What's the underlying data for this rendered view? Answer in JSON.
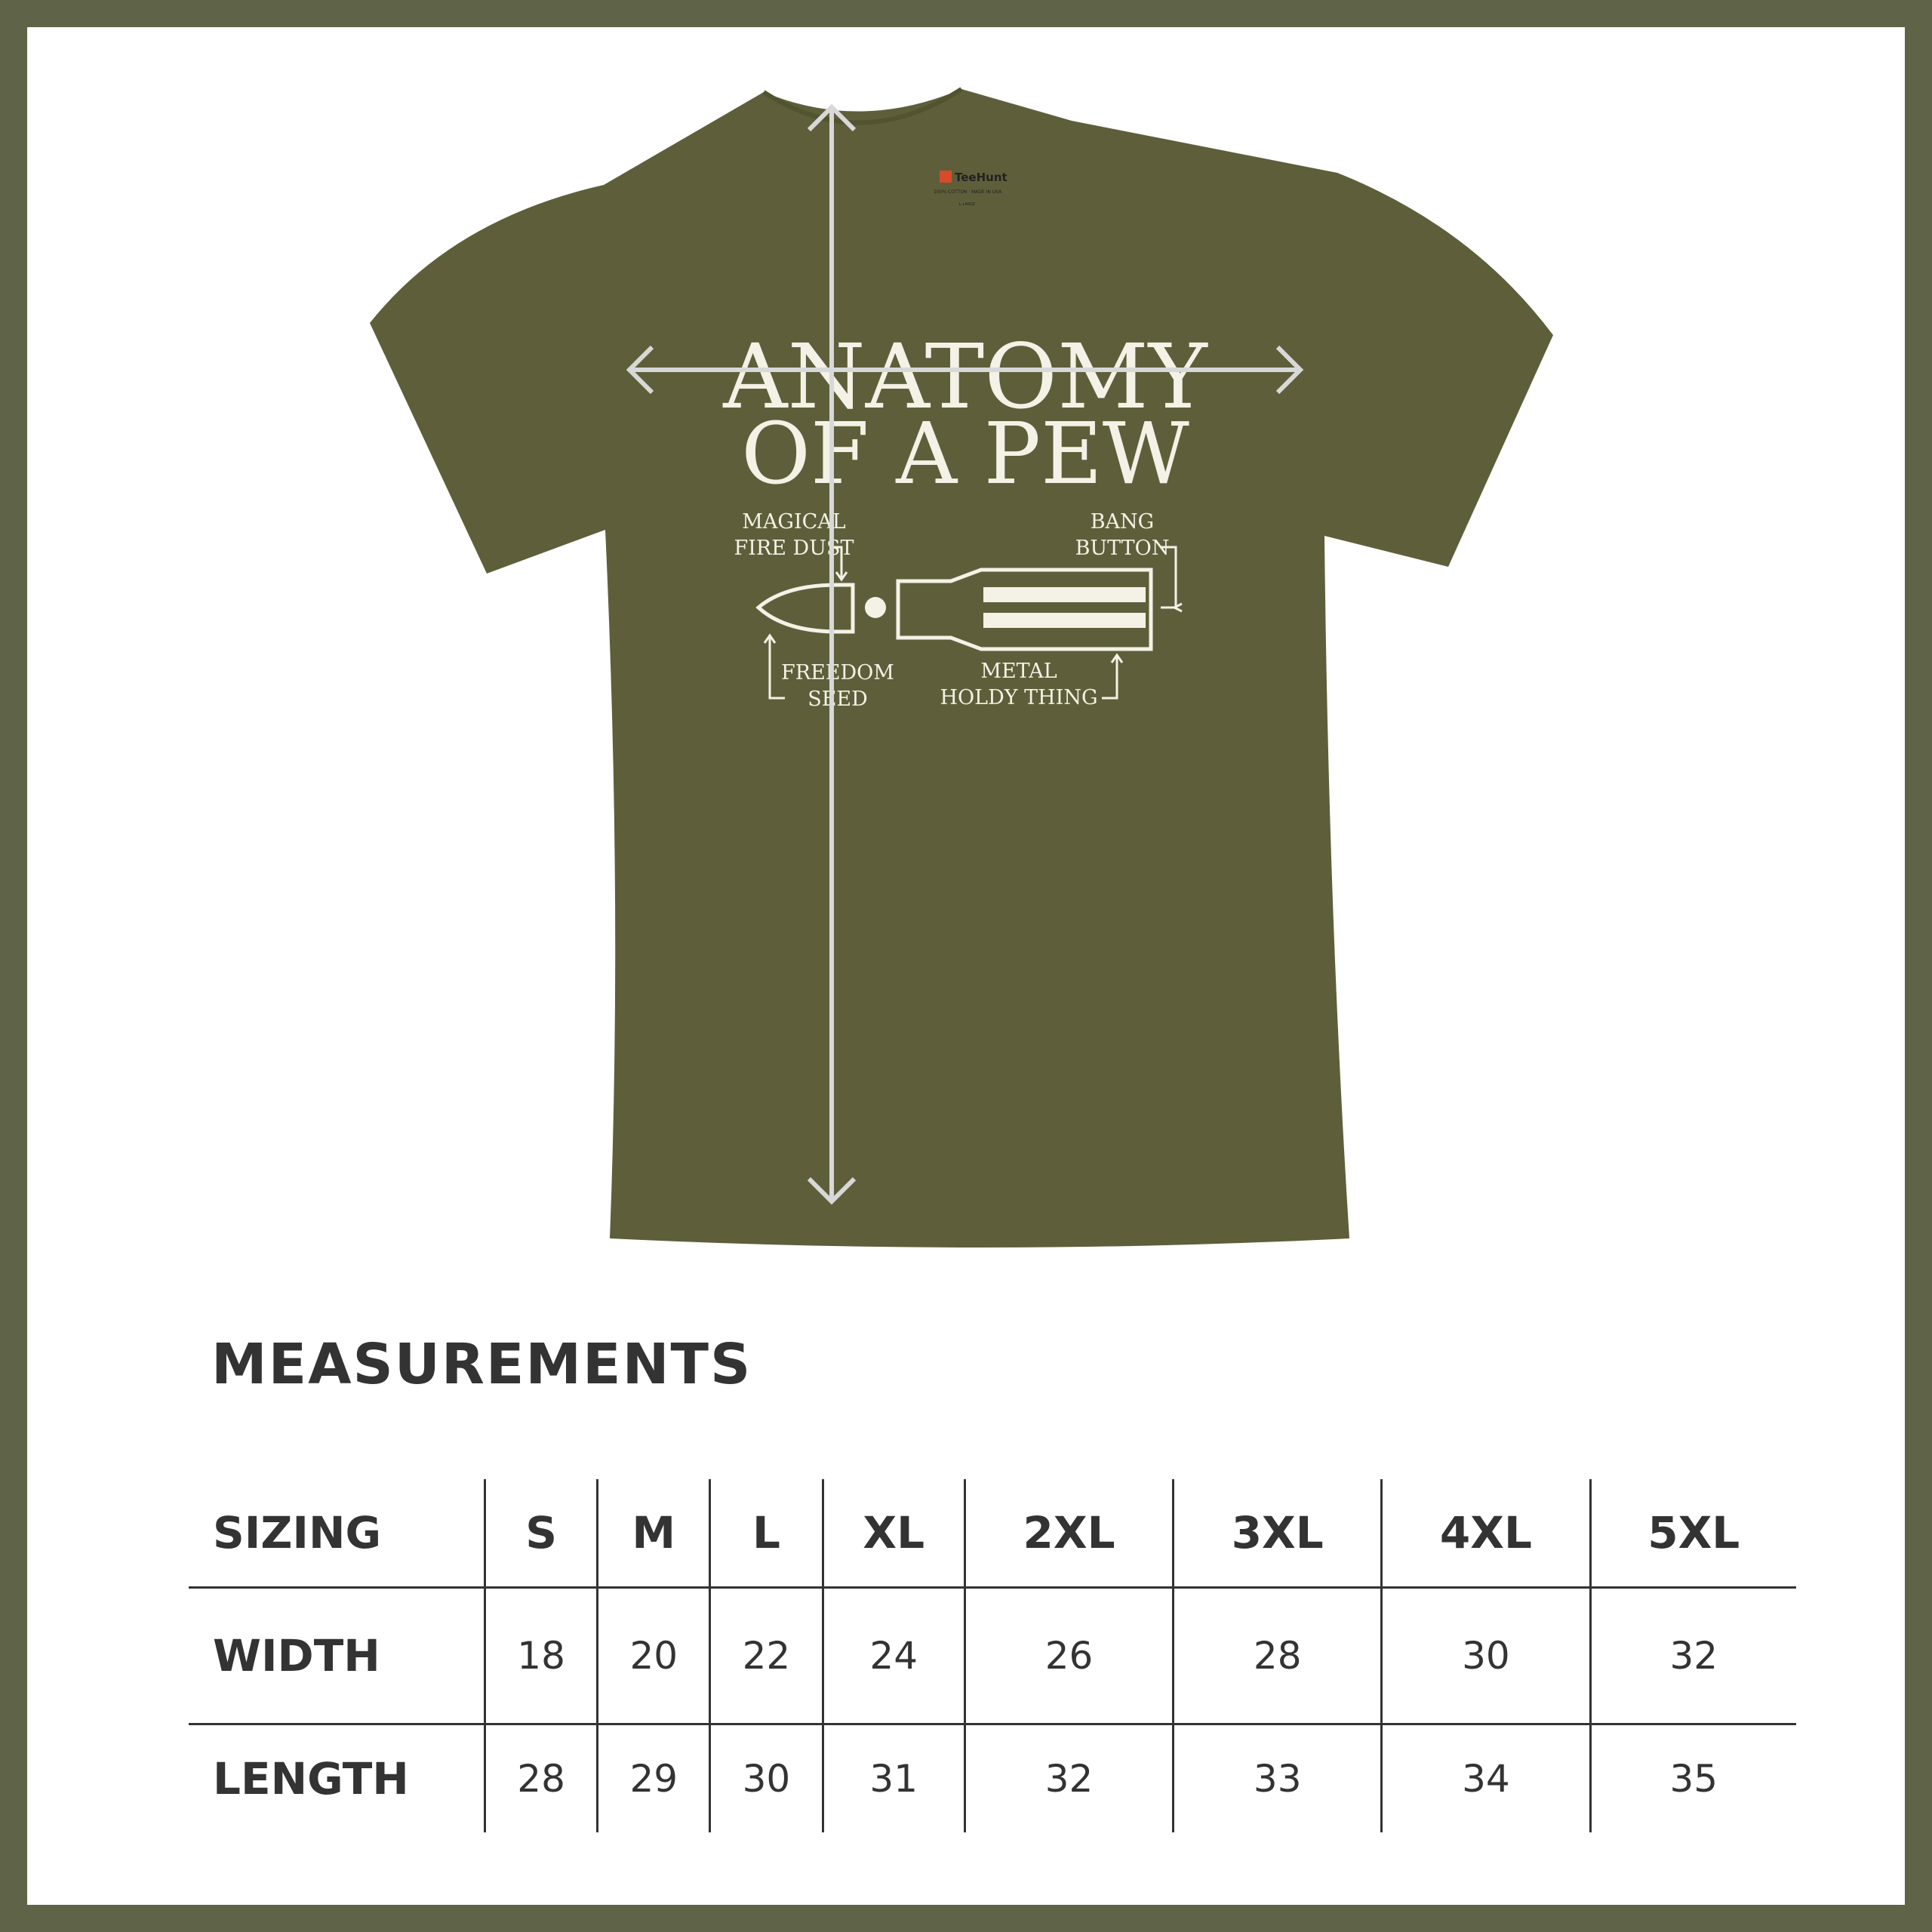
{
  "colors": {
    "border": "#5f6347",
    "shirt": "#5e5f3a",
    "print": "#f4f1e6",
    "arrow": "#d8d8d8",
    "text": "#333333"
  },
  "shirt": {
    "tag": {
      "brand": "TeeHunt",
      "material": "100% COTTON",
      "origin": "MADE IN USA",
      "size": "L-LARGE"
    },
    "print": {
      "line1": "ANATOMY",
      "line2": "OF A PEW",
      "labels": {
        "magical": "MAGICAL",
        "fire_dust": "FIRE DUST",
        "bang": "BANG",
        "button": "BUTTON",
        "freedom": "FREEDOM",
        "seed": "SEED",
        "metal": "METAL",
        "holdy": "HOLDY THING"
      }
    },
    "arrows": [
      "width-arrow",
      "length-arrow"
    ]
  },
  "measurements": {
    "title": "MEASUREMENTS",
    "header": [
      "SIZING",
      "S",
      "M",
      "L",
      "XL",
      "2XL",
      "3XL",
      "4XL",
      "5XL"
    ],
    "rows": [
      {
        "label": "WIDTH",
        "values": [
          "18",
          "20",
          "22",
          "24",
          "26",
          "28",
          "30",
          "32"
        ]
      },
      {
        "label": "LENGTH",
        "values": [
          "28",
          "29",
          "30",
          "31",
          "32",
          "33",
          "34",
          "35"
        ]
      }
    ]
  }
}
